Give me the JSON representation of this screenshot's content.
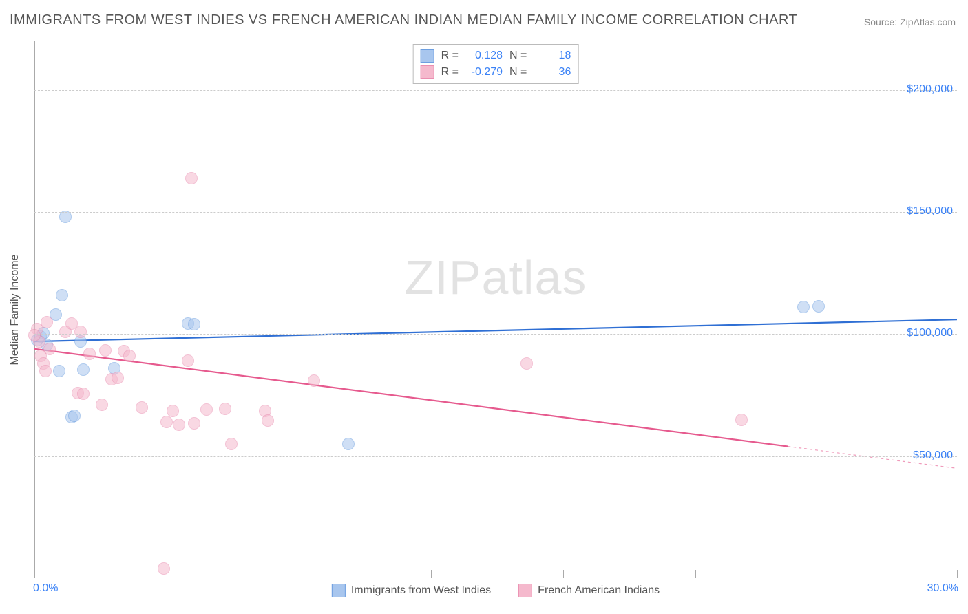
{
  "title": "IMMIGRANTS FROM WEST INDIES VS FRENCH AMERICAN INDIAN MEDIAN FAMILY INCOME CORRELATION CHART",
  "source": "Source: ZipAtlas.com",
  "watermark": "ZIPatlas",
  "ylabel": "Median Family Income",
  "chart": {
    "type": "scatter-correlation",
    "background_color": "#ffffff",
    "grid_color": "#cccccc",
    "axis_color": "#aaaaaa",
    "xlim": [
      0,
      30
    ],
    "ylim": [
      0,
      220000
    ],
    "xtick_labels": [
      "0.0%",
      "30.0%"
    ],
    "ytick_labels": [
      "$50,000",
      "$100,000",
      "$150,000",
      "$200,000"
    ],
    "ytick_values": [
      50000,
      100000,
      150000,
      200000
    ],
    "xgrid_positions": [
      0,
      4.3,
      8.6,
      12.9,
      17.2,
      21.5,
      25.8,
      30
    ],
    "marker_radius": 9,
    "marker_opacity": 0.55,
    "line_width": 2.2,
    "series": [
      {
        "name": "Immigrants from West Indies",
        "color_fill": "#a8c6ee",
        "color_stroke": "#6d9fe0",
        "line_color": "#2f6fd4",
        "R": "0.128",
        "N": "18",
        "trend": {
          "x1": 0,
          "y1": 97000,
          "x2": 30,
          "y2": 106000,
          "dash_after_x": 30
        },
        "points": [
          {
            "x": 0.2,
            "y": 99000
          },
          {
            "x": 0.3,
            "y": 100500
          },
          {
            "x": 0.4,
            "y": 95500
          },
          {
            "x": 0.9,
            "y": 116000
          },
          {
            "x": 1.0,
            "y": 148000
          },
          {
            "x": 0.7,
            "y": 108000
          },
          {
            "x": 0.8,
            "y": 85000
          },
          {
            "x": 1.2,
            "y": 66000
          },
          {
            "x": 1.3,
            "y": 66500
          },
          {
            "x": 1.5,
            "y": 97000
          },
          {
            "x": 1.6,
            "y": 85500
          },
          {
            "x": 2.6,
            "y": 86000
          },
          {
            "x": 5.0,
            "y": 104500
          },
          {
            "x": 5.2,
            "y": 104000
          },
          {
            "x": 10.2,
            "y": 55000
          },
          {
            "x": 25.0,
            "y": 111000
          },
          {
            "x": 25.5,
            "y": 111500
          },
          {
            "x": 0.1,
            "y": 97500
          }
        ]
      },
      {
        "name": "French American Indians",
        "color_fill": "#f5b9cd",
        "color_stroke": "#ea8fb1",
        "line_color": "#e65a8e",
        "R": "-0.279",
        "N": "36",
        "trend": {
          "x1": 0,
          "y1": 94000,
          "x2": 24.5,
          "y2": 54000,
          "dash_after_x": 24.5
        },
        "points": [
          {
            "x": 0.1,
            "y": 102000
          },
          {
            "x": 0.15,
            "y": 97000
          },
          {
            "x": 0.2,
            "y": 91000
          },
          {
            "x": 0.3,
            "y": 88000
          },
          {
            "x": 0.35,
            "y": 85000
          },
          {
            "x": 0.4,
            "y": 105000
          },
          {
            "x": 0.5,
            "y": 94000
          },
          {
            "x": 1.0,
            "y": 101000
          },
          {
            "x": 1.2,
            "y": 104500
          },
          {
            "x": 1.4,
            "y": 76000
          },
          {
            "x": 1.5,
            "y": 101000
          },
          {
            "x": 1.6,
            "y": 75500
          },
          {
            "x": 1.8,
            "y": 92000
          },
          {
            "x": 2.2,
            "y": 71000
          },
          {
            "x": 2.3,
            "y": 93500
          },
          {
            "x": 2.5,
            "y": 81500
          },
          {
            "x": 2.7,
            "y": 82000
          },
          {
            "x": 2.9,
            "y": 93000
          },
          {
            "x": 3.1,
            "y": 91000
          },
          {
            "x": 3.5,
            "y": 70000
          },
          {
            "x": 4.2,
            "y": 4000
          },
          {
            "x": 4.3,
            "y": 64000
          },
          {
            "x": 4.5,
            "y": 68500
          },
          {
            "x": 4.7,
            "y": 63000
          },
          {
            "x": 5.0,
            "y": 89000
          },
          {
            "x": 5.1,
            "y": 164000
          },
          {
            "x": 5.2,
            "y": 63500
          },
          {
            "x": 5.6,
            "y": 69000
          },
          {
            "x": 6.2,
            "y": 69500
          },
          {
            "x": 6.4,
            "y": 55000
          },
          {
            "x": 7.5,
            "y": 68500
          },
          {
            "x": 7.6,
            "y": 64500
          },
          {
            "x": 9.1,
            "y": 81000
          },
          {
            "x": 16.0,
            "y": 88000
          },
          {
            "x": 23.0,
            "y": 65000
          },
          {
            "x": 0.0,
            "y": 99500
          }
        ]
      }
    ],
    "title_fontsize": 20,
    "label_fontsize": 16,
    "tick_fontsize": 16,
    "tick_color": "#3b82f6"
  }
}
